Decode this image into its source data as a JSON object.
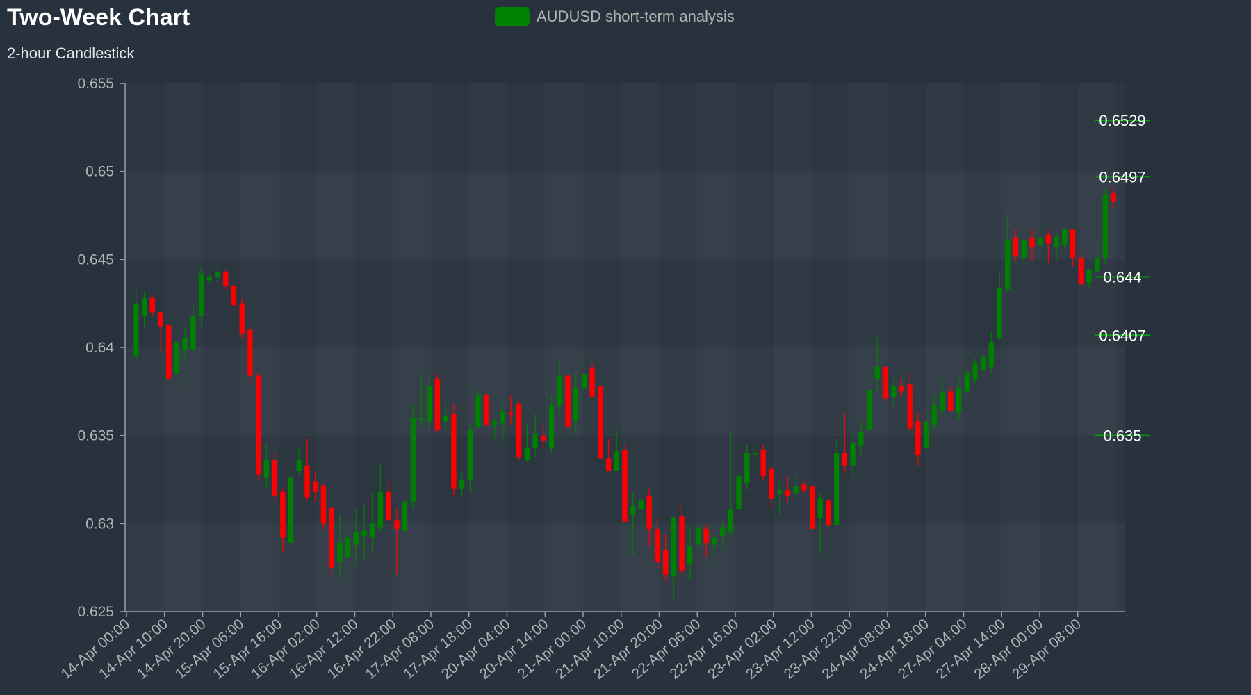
{
  "title": "Two-Week Chart",
  "subtitle": "2-hour Candlestick",
  "legend": {
    "label": "AUDUSD short-term analysis"
  },
  "colors": {
    "background": "#27323e",
    "up": "#008000",
    "down": "#ff0000",
    "level_line": "#00a000",
    "axis": "#9aa0a6"
  },
  "chart_data": {
    "type": "candlestick",
    "title": "Two-Week Chart",
    "subtitle": "2-hour Candlestick",
    "series_name": "AUDUSD short-term analysis",
    "ylim": [
      0.625,
      0.655
    ],
    "y_ticks": [
      "0.625",
      "0.63",
      "0.635",
      "0.64",
      "0.645",
      "0.65",
      "0.655"
    ],
    "y_tick_values": [
      0.625,
      0.63,
      0.635,
      0.64,
      0.645,
      0.65,
      0.655
    ],
    "x_tick_labels": [
      "14-Apr 00:00",
      "14-Apr 10:00",
      "14-Apr 20:00",
      "15-Apr 06:00",
      "15-Apr 16:00",
      "16-Apr 02:00",
      "16-Apr 12:00",
      "16-Apr 22:00",
      "17-Apr 08:00",
      "17-Apr 18:00",
      "20-Apr 04:00",
      "20-Apr 14:00",
      "21-Apr 00:00",
      "21-Apr 10:00",
      "21-Apr 20:00",
      "22-Apr 06:00",
      "22-Apr 16:00",
      "23-Apr 02:00",
      "23-Apr 12:00",
      "23-Apr 22:00",
      "24-Apr 08:00",
      "24-Apr 18:00",
      "27-Apr 04:00",
      "27-Apr 14:00",
      "28-Apr 00:00",
      "29-Apr 08:00"
    ],
    "candles": [
      [
        0.6395,
        0.6433,
        0.6392,
        0.6425
      ],
      [
        0.6418,
        0.6432,
        0.6412,
        0.6428
      ],
      [
        0.6428,
        0.643,
        0.6418,
        0.642
      ],
      [
        0.642,
        0.642,
        0.6398,
        0.6412
      ],
      [
        0.6413,
        0.6413,
        0.6382,
        0.6382
      ],
      [
        0.6385,
        0.6408,
        0.6376,
        0.6403
      ],
      [
        0.6399,
        0.6412,
        0.6392,
        0.6405
      ],
      [
        0.6399,
        0.6425,
        0.6396,
        0.6418
      ],
      [
        0.6418,
        0.6445,
        0.6412,
        0.6442
      ],
      [
        0.6438,
        0.6442,
        0.6436,
        0.644
      ],
      [
        0.644,
        0.6446,
        0.6437,
        0.6443
      ],
      [
        0.6443,
        0.6444,
        0.6433,
        0.6435
      ],
      [
        0.6435,
        0.6438,
        0.6422,
        0.6424
      ],
      [
        0.6425,
        0.6428,
        0.6405,
        0.6408
      ],
      [
        0.641,
        0.6412,
        0.638,
        0.6384
      ],
      [
        0.6384,
        0.6386,
        0.6325,
        0.6328
      ],
      [
        0.6326,
        0.6345,
        0.632,
        0.6336
      ],
      [
        0.6336,
        0.634,
        0.6312,
        0.6316
      ],
      [
        0.6318,
        0.632,
        0.6284,
        0.6292
      ],
      [
        0.6289,
        0.6335,
        0.6287,
        0.6326
      ],
      [
        0.633,
        0.6343,
        0.6327,
        0.6336
      ],
      [
        0.6333,
        0.6348,
        0.6313,
        0.6315
      ],
      [
        0.6324,
        0.633,
        0.6312,
        0.6318
      ],
      [
        0.6321,
        0.6323,
        0.6297,
        0.63
      ],
      [
        0.6309,
        0.6309,
        0.6271,
        0.6275
      ],
      [
        0.6278,
        0.6305,
        0.627,
        0.6289
      ],
      [
        0.6281,
        0.6298,
        0.6265,
        0.6292
      ],
      [
        0.6288,
        0.6308,
        0.6276,
        0.6295
      ],
      [
        0.6293,
        0.6311,
        0.628,
        0.6296
      ],
      [
        0.6292,
        0.6318,
        0.6283,
        0.63
      ],
      [
        0.6298,
        0.6334,
        0.6295,
        0.6318
      ],
      [
        0.6318,
        0.6326,
        0.6302,
        0.6302
      ],
      [
        0.6302,
        0.6308,
        0.6271,
        0.6297
      ],
      [
        0.6296,
        0.6313,
        0.6295,
        0.6312
      ],
      [
        0.6312,
        0.6368,
        0.6308,
        0.636
      ],
      [
        0.6359,
        0.6385,
        0.6355,
        0.636
      ],
      [
        0.6358,
        0.6382,
        0.6354,
        0.6378
      ],
      [
        0.6382,
        0.6385,
        0.6352,
        0.6353
      ],
      [
        0.6358,
        0.6368,
        0.6353,
        0.6361
      ],
      [
        0.6362,
        0.6368,
        0.6316,
        0.632
      ],
      [
        0.632,
        0.633,
        0.6316,
        0.6325
      ],
      [
        0.6325,
        0.6357,
        0.6318,
        0.6353
      ],
      [
        0.6355,
        0.6376,
        0.6354,
        0.6373
      ],
      [
        0.6373,
        0.6374,
        0.6354,
        0.6356
      ],
      [
        0.6356,
        0.636,
        0.6348,
        0.6358
      ],
      [
        0.6357,
        0.6369,
        0.6346,
        0.6364
      ],
      [
        0.6363,
        0.6373,
        0.6356,
        0.6362
      ],
      [
        0.6368,
        0.6369,
        0.6336,
        0.6338
      ],
      [
        0.6336,
        0.6356,
        0.6335,
        0.6343
      ],
      [
        0.6343,
        0.6362,
        0.6338,
        0.6351
      ],
      [
        0.635,
        0.6356,
        0.6343,
        0.6347
      ],
      [
        0.6343,
        0.6373,
        0.634,
        0.6367
      ],
      [
        0.6367,
        0.6392,
        0.6362,
        0.6384
      ],
      [
        0.6384,
        0.6384,
        0.6355,
        0.6355
      ],
      [
        0.6358,
        0.6386,
        0.6351,
        0.6377
      ],
      [
        0.6377,
        0.6398,
        0.6374,
        0.6385
      ],
      [
        0.6388,
        0.6391,
        0.6372,
        0.6372
      ],
      [
        0.6378,
        0.6378,
        0.6337,
        0.6337
      ],
      [
        0.6337,
        0.6348,
        0.6331,
        0.633
      ],
      [
        0.633,
        0.6353,
        0.6332,
        0.6341
      ],
      [
        0.6342,
        0.6345,
        0.6301,
        0.6301
      ],
      [
        0.6305,
        0.6318,
        0.6282,
        0.631
      ],
      [
        0.6308,
        0.6319,
        0.6296,
        0.6313
      ],
      [
        0.6316,
        0.632,
        0.6287,
        0.6297
      ],
      [
        0.6297,
        0.6303,
        0.6275,
        0.6278
      ],
      [
        0.6285,
        0.6294,
        0.6268,
        0.6271
      ],
      [
        0.627,
        0.6305,
        0.6256,
        0.6303
      ],
      [
        0.6304,
        0.6311,
        0.6271,
        0.6273
      ],
      [
        0.6277,
        0.6297,
        0.6268,
        0.6287
      ],
      [
        0.6288,
        0.6305,
        0.6282,
        0.6298
      ],
      [
        0.6297,
        0.6299,
        0.6281,
        0.6289
      ],
      [
        0.6288,
        0.6294,
        0.6277,
        0.6292
      ],
      [
        0.6293,
        0.6302,
        0.6286,
        0.6298
      ],
      [
        0.6295,
        0.6352,
        0.6293,
        0.6308
      ],
      [
        0.6308,
        0.6329,
        0.6308,
        0.6327
      ],
      [
        0.6323,
        0.6345,
        0.6319,
        0.634
      ],
      [
        0.634,
        0.6346,
        0.6326,
        0.634
      ],
      [
        0.6342,
        0.6345,
        0.6325,
        0.6327
      ],
      [
        0.6331,
        0.6333,
        0.6309,
        0.6314
      ],
      [
        0.6317,
        0.6324,
        0.6305,
        0.6319
      ],
      [
        0.6319,
        0.6327,
        0.6312,
        0.6316
      ],
      [
        0.6317,
        0.6328,
        0.6314,
        0.6321
      ],
      [
        0.6322,
        0.6324,
        0.6317,
        0.6319
      ],
      [
        0.6321,
        0.6322,
        0.6294,
        0.6297
      ],
      [
        0.6303,
        0.6317,
        0.6283,
        0.6314
      ],
      [
        0.6313,
        0.6314,
        0.6297,
        0.6299
      ],
      [
        0.6299,
        0.6348,
        0.6299,
        0.634
      ],
      [
        0.634,
        0.6363,
        0.6329,
        0.6333
      ],
      [
        0.6333,
        0.6351,
        0.6327,
        0.6346
      ],
      [
        0.6344,
        0.6358,
        0.6339,
        0.6352
      ],
      [
        0.6353,
        0.639,
        0.635,
        0.6376
      ],
      [
        0.6382,
        0.6406,
        0.6375,
        0.6389
      ],
      [
        0.6389,
        0.6388,
        0.6369,
        0.6371
      ],
      [
        0.6372,
        0.6382,
        0.6366,
        0.6378
      ],
      [
        0.6378,
        0.6382,
        0.6372,
        0.6375
      ],
      [
        0.6379,
        0.6386,
        0.6352,
        0.6354
      ],
      [
        0.6358,
        0.6363,
        0.6333,
        0.6339
      ],
      [
        0.6343,
        0.6365,
        0.6336,
        0.6358
      ],
      [
        0.6356,
        0.6373,
        0.6353,
        0.6367
      ],
      [
        0.6364,
        0.6382,
        0.6361,
        0.6375
      ],
      [
        0.6375,
        0.6378,
        0.6364,
        0.6364
      ],
      [
        0.6363,
        0.6383,
        0.6359,
        0.6377
      ],
      [
        0.6375,
        0.6389,
        0.6373,
        0.6386
      ],
      [
        0.6382,
        0.6394,
        0.6379,
        0.6391
      ],
      [
        0.6387,
        0.6397,
        0.6383,
        0.6395
      ],
      [
        0.6389,
        0.6409,
        0.6386,
        0.6403
      ],
      [
        0.6405,
        0.6443,
        0.6404,
        0.6434
      ],
      [
        0.6433,
        0.6475,
        0.6431,
        0.6461
      ],
      [
        0.6462,
        0.6467,
        0.6449,
        0.6452
      ],
      [
        0.6451,
        0.6462,
        0.6448,
        0.6461
      ],
      [
        0.6462,
        0.6467,
        0.6449,
        0.6457
      ],
      [
        0.6458,
        0.6472,
        0.6454,
        0.6462
      ],
      [
        0.6464,
        0.6466,
        0.6448,
        0.6459
      ],
      [
        0.6457,
        0.6465,
        0.6449,
        0.6463
      ],
      [
        0.6458,
        0.6468,
        0.6455,
        0.6467
      ],
      [
        0.6467,
        0.6465,
        0.6446,
        0.6451
      ],
      [
        0.6451,
        0.6455,
        0.6435,
        0.6436
      ],
      [
        0.6437,
        0.6445,
        0.6434,
        0.6444
      ],
      [
        0.6443,
        0.6461,
        0.6441,
        0.6451
      ],
      [
        0.6451,
        0.649,
        0.6447,
        0.6487
      ],
      [
        0.6488,
        0.6491,
        0.6479,
        0.6483
      ]
    ],
    "levels": [
      {
        "value": 0.6529,
        "label": "0.6529"
      },
      {
        "value": 0.6497,
        "label": "0.6497"
      },
      {
        "value": 0.644,
        "label": "0.644"
      },
      {
        "value": 0.6407,
        "label": "0.6407"
      },
      {
        "value": 0.635,
        "label": "0.635"
      }
    ],
    "grid": true,
    "legend_position": "top-center"
  }
}
